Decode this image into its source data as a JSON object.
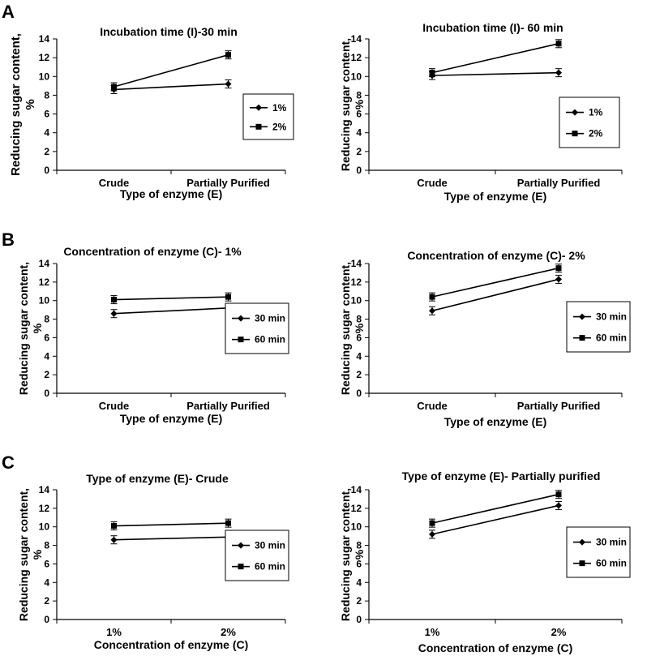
{
  "panel_labels": [
    "A",
    "B",
    "C"
  ],
  "chart_data": [
    {
      "type": "line",
      "panel": "A",
      "title": "Incubation time (I)-30 min",
      "xlabel": "Type of enzyme (E)",
      "ylabel": "Reducing sugar content, %",
      "categories": [
        "Crude",
        "Partially Purified"
      ],
      "ylim": [
        0,
        14
      ],
      "yticks": [
        0,
        2,
        4,
        6,
        8,
        10,
        12,
        14
      ],
      "grid": false,
      "legend": "right",
      "series": [
        {
          "name": "1%",
          "marker": "diamond",
          "values": [
            8.6,
            9.2
          ]
        },
        {
          "name": "2%",
          "marker": "square",
          "values": [
            8.9,
            12.3
          ]
        }
      ]
    },
    {
      "type": "line",
      "panel": "A",
      "title": "Incubation time (I)- 60 min",
      "xlabel": "Type of enzyme (E)",
      "ylabel": "Reducing sugar content, %",
      "categories": [
        "Crude",
        "Partially Purified"
      ],
      "ylim": [
        0,
        14
      ],
      "yticks": [
        0,
        2,
        4,
        6,
        8,
        10,
        12,
        14
      ],
      "grid": false,
      "legend": "right",
      "series": [
        {
          "name": "1%",
          "marker": "diamond",
          "values": [
            10.1,
            10.4
          ]
        },
        {
          "name": "2%",
          "marker": "square",
          "values": [
            10.4,
            13.5
          ]
        }
      ]
    },
    {
      "type": "line",
      "panel": "B",
      "title": "Concentration of enzyme (C)- 1%",
      "xlabel": "Type of enzyme (E)",
      "ylabel": "Reducing sugar content, %",
      "categories": [
        "Crude",
        "Partially Purified"
      ],
      "ylim": [
        0,
        14
      ],
      "yticks": [
        0,
        2,
        4,
        6,
        8,
        10,
        12,
        14
      ],
      "grid": false,
      "legend": "right",
      "series": [
        {
          "name": "30 min",
          "marker": "diamond",
          "values": [
            8.6,
            9.2
          ]
        },
        {
          "name": "60 min",
          "marker": "square",
          "values": [
            10.1,
            10.4
          ]
        }
      ]
    },
    {
      "type": "line",
      "panel": "B",
      "title": "Concentration of enzyme (C)- 2%",
      "xlabel": "Type of enzyme (E)",
      "ylabel": "Reducing sugar content, %",
      "categories": [
        "Crude",
        "Partially Purified"
      ],
      "ylim": [
        0,
        14
      ],
      "yticks": [
        0,
        2,
        4,
        6,
        8,
        10,
        12,
        14
      ],
      "grid": false,
      "legend": "right",
      "series": [
        {
          "name": "30 min",
          "marker": "diamond",
          "values": [
            8.9,
            12.3
          ]
        },
        {
          "name": "60 min",
          "marker": "square",
          "values": [
            10.4,
            13.5
          ]
        }
      ]
    },
    {
      "type": "line",
      "panel": "C",
      "title": "Type of enzyme (E)- Crude",
      "xlabel": "Concentration of enzyme (C)",
      "ylabel": "Reducing sugar content, %",
      "categories": [
        "1%",
        "2%"
      ],
      "ylim": [
        0,
        14
      ],
      "yticks": [
        0,
        2,
        4,
        6,
        8,
        10,
        12,
        14
      ],
      "grid": false,
      "legend": "right",
      "series": [
        {
          "name": "30 min",
          "marker": "diamond",
          "values": [
            8.6,
            8.9
          ]
        },
        {
          "name": "60 min",
          "marker": "square",
          "values": [
            10.1,
            10.4
          ]
        }
      ]
    },
    {
      "type": "line",
      "panel": "C",
      "title": "Type of enzyme (E)- Partially purified",
      "xlabel": "Concentration of enzyme (C)",
      "ylabel": "Reducing sugar content, %",
      "categories": [
        "1%",
        "2%"
      ],
      "ylim": [
        0,
        14
      ],
      "yticks": [
        0,
        2,
        4,
        6,
        8,
        10,
        12,
        14
      ],
      "grid": false,
      "legend": "right",
      "series": [
        {
          "name": "30 min",
          "marker": "diamond",
          "values": [
            9.2,
            12.3
          ]
        },
        {
          "name": "60 min",
          "marker": "square",
          "values": [
            10.4,
            13.5
          ]
        }
      ]
    }
  ]
}
